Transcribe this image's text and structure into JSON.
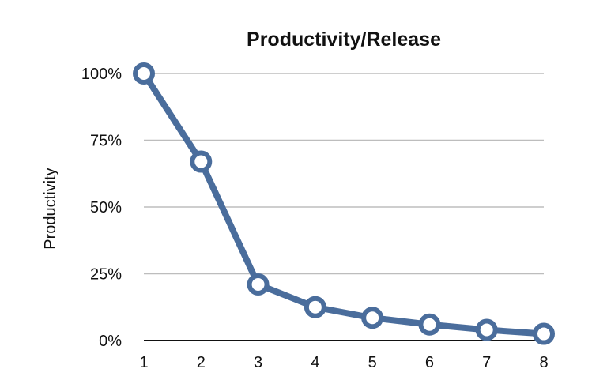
{
  "chart_data": {
    "type": "line",
    "title": "Productivity/Release",
    "xlabel": "",
    "ylabel": "Productivity",
    "x": [
      1,
      2,
      3,
      4,
      5,
      6,
      7,
      8
    ],
    "x_tick_labels": [
      "1",
      "2",
      "3",
      "4",
      "5",
      "6",
      "7",
      "8"
    ],
    "y_tick_labels": [
      "0%",
      "25%",
      "50%",
      "75%",
      "100%"
    ],
    "y_ticks": [
      0,
      25,
      50,
      75,
      100
    ],
    "ylim": [
      0,
      100
    ],
    "series": [
      {
        "values": [
          100,
          67,
          21,
          12.5,
          8.5,
          6,
          4,
          2.5
        ]
      }
    ],
    "grid": true,
    "line_color": "#4a6d9c",
    "grid_color": "#bdbdbd",
    "axis_color": "#111111",
    "marker_fill": "#ffffff"
  }
}
